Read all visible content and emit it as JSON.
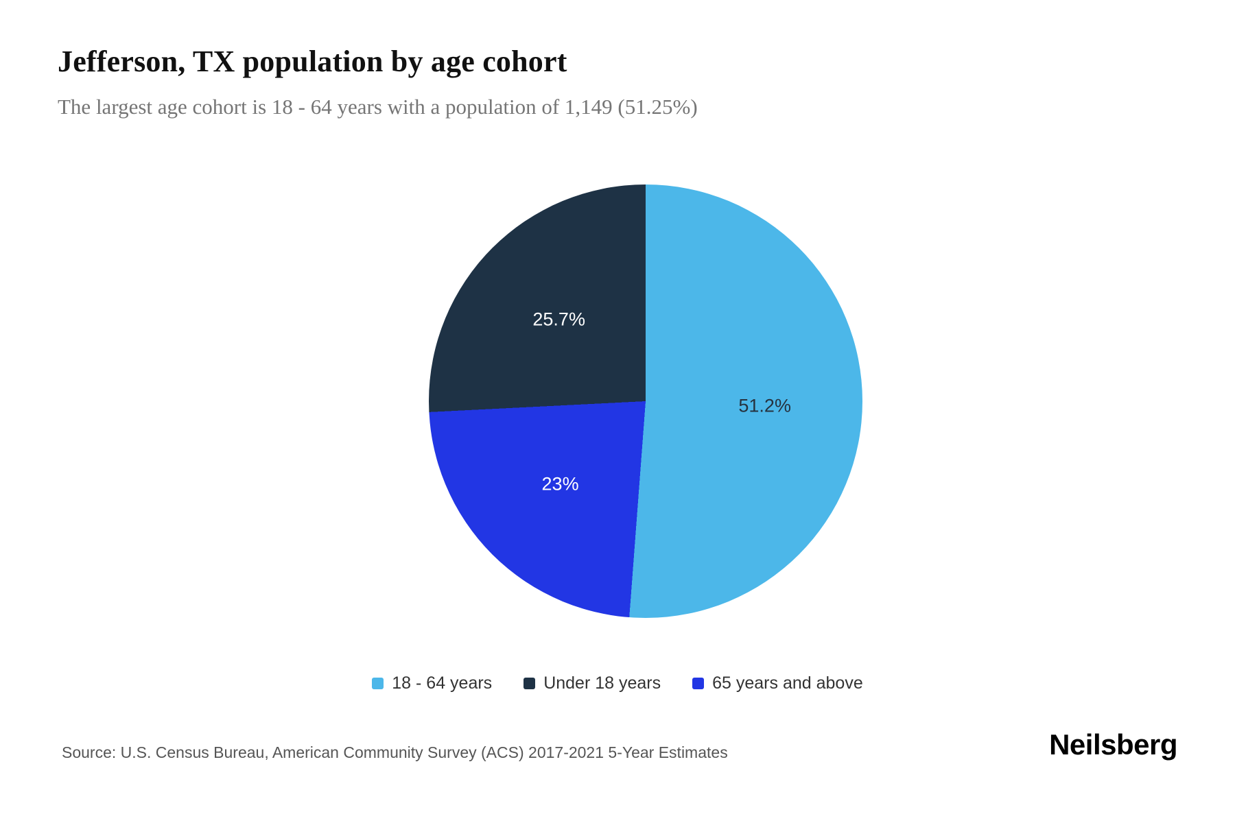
{
  "header": {
    "title": "Jefferson, TX population by age cohort",
    "subtitle": "The largest age cohort is 18 - 64 years with a population of 1,149 (51.25%)"
  },
  "chart_data": {
    "type": "pie",
    "title": "Jefferson, TX population by age cohort",
    "unit": "percent of total population",
    "start_angle_deg": 0,
    "direction": "clockwise",
    "slices": [
      {
        "category": "18 - 64 years",
        "value": 51.2,
        "display_label": "51.2%",
        "color": "#4cb7e9",
        "text_color": "#26323f"
      },
      {
        "category": "65 years and above",
        "value": 23.0,
        "display_label": "23%",
        "color": "#2236e4",
        "text_color": "#ffffff"
      },
      {
        "category": "Under 18 years",
        "value": 25.7,
        "display_label": "25.7%",
        "color": "#1e3245",
        "text_color": "#ffffff"
      }
    ],
    "legend": [
      {
        "label": "18 - 64 years",
        "color": "#4cb7e9"
      },
      {
        "label": "Under 18 years",
        "color": "#1e3245"
      },
      {
        "label": "65 years and above",
        "color": "#2236e4"
      }
    ],
    "legend_position": "bottom"
  },
  "footer": {
    "source": "Source: U.S. Census Bureau, American Community Survey (ACS) 2017-2021 5-Year Estimates",
    "brand": "Neilsberg"
  }
}
